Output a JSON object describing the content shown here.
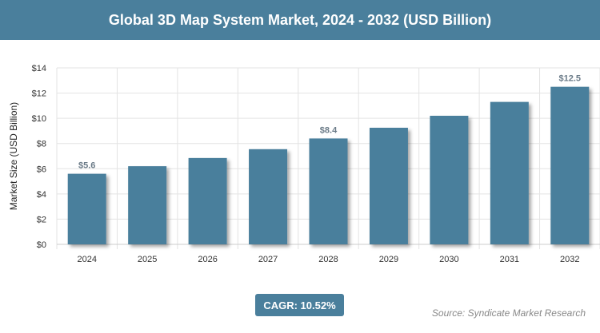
{
  "header": {
    "title": "Global 3D Map System Market, 2024 - 2032 (USD Billion)"
  },
  "chart_data": {
    "type": "bar",
    "title": "Global 3D Map System Market, 2024 - 2032 (USD Billion)",
    "xlabel": "",
    "ylabel": "Market Size (USD Billion)",
    "categories": [
      "2024",
      "2025",
      "2026",
      "2027",
      "2028",
      "2029",
      "2030",
      "2031",
      "2032"
    ],
    "values": [
      5.6,
      6.2,
      6.85,
      7.55,
      8.4,
      9.25,
      10.2,
      11.3,
      12.5
    ],
    "data_labels": {
      "0": "$5.6",
      "4": "$8.4",
      "8": "$12.5"
    },
    "ylim": [
      0,
      14
    ],
    "yticks": [
      "$0",
      "$2",
      "$4",
      "$6",
      "$8",
      "$10",
      "$12",
      "$14"
    ],
    "grid": true,
    "bar_color": "#4a7f9c"
  },
  "footer": {
    "cagr": "CAGR: 10.52%",
    "source": "Source: Syndicate Market Research"
  }
}
